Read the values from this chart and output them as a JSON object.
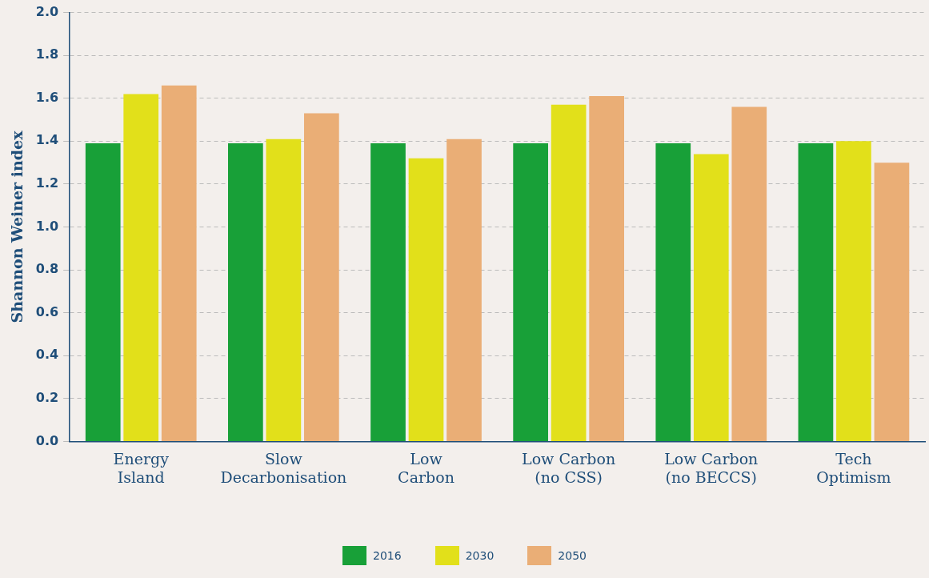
{
  "chart_data": {
    "type": "bar",
    "ylabel": "Shannon Weiner index",
    "categories": [
      "Energy\nIsland",
      "Slow\nDecarbonisation",
      "Low\nCarbon",
      "Low Carbon\n(no CSS)",
      "Low Carbon\n(no BECCS)",
      "Tech\nOptimism"
    ],
    "series": [
      {
        "name": "2016",
        "color": "#18a038",
        "values": [
          1.39,
          1.39,
          1.39,
          1.39,
          1.39,
          1.39
        ]
      },
      {
        "name": "2030",
        "color": "#e2e01a",
        "values": [
          1.62,
          1.41,
          1.32,
          1.57,
          1.34,
          1.4
        ]
      },
      {
        "name": "2050",
        "color": "#eaae76",
        "values": [
          1.66,
          1.53,
          1.41,
          1.61,
          1.56,
          1.3
        ]
      }
    ],
    "ylim": [
      0,
      2
    ],
    "yticks": [
      {
        "value": 0,
        "label": "0.0"
      },
      {
        "value": 0.2,
        "label": "0.2"
      },
      {
        "value": 0.4,
        "label": "0.4"
      },
      {
        "value": 0.6,
        "label": "0.6"
      },
      {
        "value": 0.8,
        "label": "0.8"
      },
      {
        "value": 1,
        "label": "1.0"
      },
      {
        "value": 1.2,
        "label": "1.2"
      },
      {
        "value": 1.4,
        "label": "1.4"
      },
      {
        "value": 1.6,
        "label": "1.6"
      },
      {
        "value": 1.8,
        "label": "1.8"
      },
      {
        "value": 2,
        "label": "2.0"
      }
    ],
    "grid": "y",
    "legend": "bottom"
  }
}
